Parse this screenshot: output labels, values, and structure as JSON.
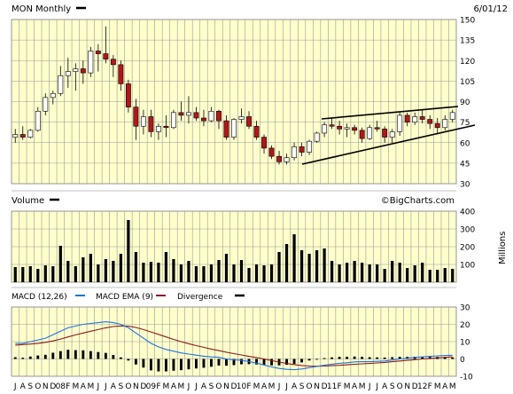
{
  "chart_data": [
    {
      "type": "candlestick",
      "title": "MON Monthly",
      "date": "6/01/12",
      "watermark": "©BigCharts.com",
      "yticks": [
        150,
        135,
        120,
        105,
        90,
        75,
        60,
        45,
        30
      ],
      "ylim": [
        30,
        150
      ],
      "xlabels": [
        "J",
        "A",
        "S",
        "O",
        "N",
        "D",
        "08",
        "F",
        "M",
        "A",
        "M",
        "J",
        "J",
        "A",
        "S",
        "O",
        "N",
        "D",
        "09",
        "F",
        "M",
        "A",
        "M",
        "J",
        "J",
        "A",
        "S",
        "O",
        "N",
        "D",
        "10",
        "F",
        "M",
        "A",
        "M",
        "J",
        "J",
        "A",
        "S",
        "O",
        "N",
        "D",
        "11",
        "F",
        "M",
        "A",
        "M",
        "J",
        "J",
        "A",
        "S",
        "O",
        "N",
        "D",
        "12",
        "F",
        "M",
        "A",
        "M"
      ],
      "ohlc": [
        [
          64,
          70,
          60,
          66
        ],
        [
          66,
          72,
          62,
          64
        ],
        [
          64,
          70,
          63,
          69
        ],
        [
          69,
          86,
          68,
          83
        ],
        [
          83,
          96,
          80,
          93
        ],
        [
          93,
          98,
          88,
          96
        ],
        [
          96,
          116,
          94,
          109
        ],
        [
          109,
          122,
          100,
          112
        ],
        [
          112,
          118,
          98,
          114
        ],
        [
          114,
          120,
          103,
          111
        ],
        [
          111,
          130,
          108,
          127
        ],
        [
          127,
          132,
          112,
          125
        ],
        [
          125,
          145,
          118,
          121
        ],
        [
          121,
          124,
          108,
          117
        ],
        [
          117,
          120,
          98,
          103
        ],
        [
          103,
          106,
          82,
          86
        ],
        [
          86,
          92,
          62,
          72
        ],
        [
          72,
          84,
          66,
          79
        ],
        [
          79,
          84,
          64,
          68
        ],
        [
          68,
          74,
          62,
          72
        ],
        [
          72,
          80,
          64,
          71
        ],
        [
          71,
          84,
          70,
          82
        ],
        [
          82,
          90,
          76,
          80
        ],
        [
          80,
          94,
          74,
          82
        ],
        [
          82,
          86,
          76,
          78
        ],
        [
          78,
          84,
          72,
          76
        ],
        [
          76,
          86,
          75,
          83
        ],
        [
          83,
          84,
          70,
          76
        ],
        [
          76,
          80,
          62,
          64
        ],
        [
          64,
          78,
          62,
          77
        ],
        [
          77,
          85,
          74,
          79
        ],
        [
          79,
          83,
          70,
          72
        ],
        [
          72,
          76,
          62,
          64
        ],
        [
          64,
          66,
          52,
          56
        ],
        [
          56,
          58,
          48,
          50
        ],
        [
          50,
          54,
          44,
          46
        ],
        [
          46,
          52,
          44,
          49
        ],
        [
          49,
          60,
          47,
          57
        ],
        [
          57,
          60,
          50,
          53
        ],
        [
          53,
          62,
          51,
          61
        ],
        [
          61,
          68,
          60,
          67
        ],
        [
          67,
          75,
          64,
          73
        ],
        [
          73,
          78,
          70,
          72
        ],
        [
          72,
          76,
          66,
          70
        ],
        [
          70,
          74,
          64,
          71
        ],
        [
          71,
          73,
          66,
          69
        ],
        [
          69,
          71,
          60,
          63
        ],
        [
          63,
          73,
          62,
          71
        ],
        [
          71,
          76,
          68,
          70
        ],
        [
          70,
          72,
          60,
          64
        ],
        [
          64,
          70,
          60,
          68
        ],
        [
          68,
          82,
          65,
          80
        ],
        [
          80,
          82,
          72,
          75
        ],
        [
          75,
          82,
          73,
          79
        ],
        [
          79,
          84,
          74,
          77
        ],
        [
          77,
          80,
          70,
          74
        ],
        [
          74,
          78,
          66,
          71
        ],
        [
          71,
          80,
          69,
          77
        ],
        [
          77,
          84,
          75,
          82
        ]
      ]
    },
    {
      "type": "bar",
      "title": "Volume",
      "ylabel": "Millions",
      "yticks": [
        400,
        300,
        200,
        100
      ],
      "ylim": [
        0,
        400
      ],
      "values": [
        85,
        85,
        90,
        75,
        95,
        90,
        205,
        120,
        90,
        140,
        160,
        100,
        130,
        120,
        160,
        350,
        170,
        110,
        115,
        110,
        170,
        130,
        100,
        120,
        90,
        90,
        100,
        125,
        160,
        100,
        125,
        80,
        100,
        95,
        100,
        170,
        215,
        270,
        180,
        160,
        180,
        190,
        120,
        100,
        110,
        120,
        110,
        100,
        100,
        75,
        120,
        110,
        80,
        95,
        110,
        70,
        70,
        80,
        75
      ]
    },
    {
      "type": "line",
      "title": "MACD (12,26)",
      "series": [
        {
          "name": "MACD EMA (9)",
          "color": "#1e73dc"
        },
        {
          "name": "Divergence",
          "color": "#8b1a1a"
        }
      ],
      "yticks": [
        30,
        20,
        10,
        0,
        -10
      ],
      "ylim": [
        -10,
        30
      ],
      "macd": [
        9,
        9,
        10,
        11,
        12,
        14,
        16,
        18,
        19,
        20,
        20.5,
        21,
        21.5,
        21,
        20,
        18,
        15,
        12,
        9,
        7,
        5.5,
        4.5,
        3.5,
        2.8,
        2.2,
        1.6,
        1.2,
        1,
        0,
        -0.5,
        -0.8,
        -1.5,
        -2.4,
        -3.5,
        -4.6,
        -5.5,
        -6,
        -6.2,
        -5.8,
        -5,
        -4.3,
        -3.6,
        -3,
        -2.5,
        -2.2,
        -1.7,
        -1.6,
        -1.6,
        -1.4,
        -1.2,
        -0.6,
        0,
        0.4,
        0.9,
        1.2,
        1.5,
        1.8,
        2,
        2.1
      ],
      "signal": [
        8,
        8.3,
        8.6,
        9,
        9.6,
        10.4,
        11.5,
        12.7,
        13.9,
        15,
        16,
        17,
        18,
        18.7,
        19.1,
        18.9,
        18.2,
        17,
        15.6,
        14.2,
        12.7,
        11.3,
        10,
        8.8,
        7.7,
        6.7,
        5.7,
        4.8,
        3.9,
        3.1,
        2.3,
        1.5,
        0.8,
        0,
        -0.9,
        -1.8,
        -2.6,
        -3.3,
        -3.8,
        -4.1,
        -4.2,
        -4.1,
        -3.9,
        -3.7,
        -3.4,
        -3.1,
        -2.8,
        -2.6,
        -2.3,
        -2,
        -1.6,
        -1.2,
        -0.8,
        -0.4,
        0,
        0.3,
        0.6,
        0.9,
        1.2
      ],
      "divergence": [
        1,
        0.7,
        1.4,
        2,
        2.4,
        3.6,
        4.5,
        5.3,
        5.1,
        5,
        4.5,
        4,
        3.5,
        2.3,
        0.9,
        -0.9,
        -3.2,
        -5,
        -6.6,
        -7.2,
        -7.2,
        -6.8,
        -6.5,
        -6,
        -5.5,
        -5.1,
        -4.5,
        -3.8,
        -3.9,
        -3.6,
        -3.1,
        -3,
        -3.2,
        -3.5,
        -3.7,
        -3.7,
        -3.4,
        -2.9,
        -2,
        -0.9,
        -0.1,
        0.5,
        0.9,
        1.2,
        1.2,
        1.4,
        1.2,
        1,
        0.9,
        0.8,
        1,
        1.2,
        1.2,
        1.3,
        1.2,
        1.2,
        1.2,
        1.1,
        0.9
      ]
    }
  ]
}
